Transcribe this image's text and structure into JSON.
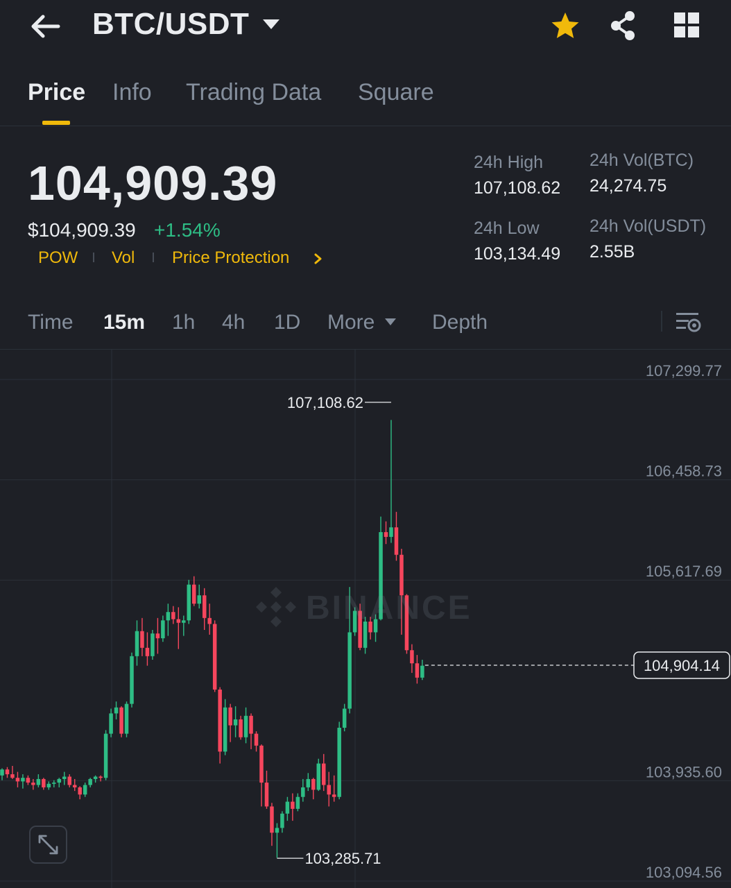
{
  "header": {
    "pair": "BTC/USDT",
    "icons": [
      "back-arrow-icon",
      "caret-down-icon",
      "star-icon",
      "share-icon",
      "grid-icon"
    ],
    "colors": {
      "star": "#f0b90b"
    }
  },
  "tabs": [
    {
      "label": "Price",
      "active": true
    },
    {
      "label": "Info",
      "active": false
    },
    {
      "label": "Trading Data",
      "active": false
    },
    {
      "label": "Square",
      "active": false
    }
  ],
  "ticker": {
    "last_price": "104,909.39",
    "usd_price": "$104,909.39",
    "change_pct": "+1.54%",
    "tags": [
      "POW",
      "Vol",
      "Price Protection"
    ],
    "stats": {
      "high_label": "24h High",
      "high_value": "107,108.62",
      "low_label": "24h Low",
      "low_value": "103,134.49",
      "vol_btc_label": "24h Vol(BTC)",
      "vol_btc_value": "24,274.75",
      "vol_usdt_label": "24h Vol(USDT)",
      "vol_usdt_value": "2.55B"
    },
    "colors": {
      "up": "#2ebd85",
      "down": "#f6465d",
      "accent": "#f0b90b"
    }
  },
  "intervals": {
    "items": [
      "Time",
      "15m",
      "1h",
      "4h",
      "1D",
      "More",
      "Depth"
    ],
    "active": "15m"
  },
  "chart_data": {
    "type": "candlestick",
    "interval": "15m",
    "y_ticks": [
      "107,299.77",
      "106,458.73",
      "105,617.69",
      "103,935.60",
      "103,094.56"
    ],
    "ylim": [
      103094.56,
      107299.77
    ],
    "high_marker": "107,108.62",
    "low_marker": "103,285.71",
    "last_price_label": "104,904.14",
    "last_price": 104904.14,
    "watermark": "BINANCE",
    "candles": [
      [
        103980,
        104040,
        103940,
        104030
      ],
      [
        104030,
        104050,
        103960,
        103990
      ],
      [
        103990,
        104060,
        103950,
        103960
      ],
      [
        103960,
        104010,
        103880,
        103930
      ],
      [
        103930,
        103990,
        103870,
        103960
      ],
      [
        103960,
        103980,
        103900,
        103920
      ],
      [
        103920,
        103950,
        103860,
        103900
      ],
      [
        103900,
        103990,
        103880,
        103950
      ],
      [
        103950,
        103960,
        103860,
        103880
      ],
      [
        103880,
        103930,
        103860,
        103910
      ],
      [
        103910,
        103940,
        103880,
        103920
      ],
      [
        103920,
        103960,
        103880,
        103950
      ],
      [
        103950,
        104010,
        103900,
        103970
      ],
      [
        103970,
        103990,
        103880,
        103900
      ],
      [
        103900,
        103950,
        103850,
        103880
      ],
      [
        103880,
        103890,
        103780,
        103820
      ],
      [
        103820,
        103920,
        103800,
        103900
      ],
      [
        103900,
        103960,
        103880,
        103950
      ],
      [
        103950,
        103980,
        103920,
        103970
      ],
      [
        103970,
        103980,
        103930,
        103960
      ],
      [
        103960,
        104360,
        103940,
        104330
      ],
      [
        104330,
        104540,
        104300,
        104500
      ],
      [
        104500,
        104600,
        104450,
        104550
      ],
      [
        104550,
        104560,
        104300,
        104330
      ],
      [
        104330,
        104600,
        104300,
        104580
      ],
      [
        104580,
        105010,
        104550,
        104980
      ],
      [
        104980,
        105280,
        104900,
        105190
      ],
      [
        105190,
        105300,
        104980,
        105050
      ],
      [
        105050,
        105180,
        104900,
        104980
      ],
      [
        104980,
        105200,
        104950,
        105170
      ],
      [
        105170,
        105300,
        105000,
        105130
      ],
      [
        105130,
        105320,
        105100,
        105280
      ],
      [
        105280,
        105420,
        105150,
        105350
      ],
      [
        105350,
        105400,
        105250,
        105290
      ],
      [
        105290,
        105390,
        105040,
        105260
      ],
      [
        105260,
        105320,
        105150,
        105280
      ],
      [
        105280,
        105620,
        105250,
        105580
      ],
      [
        105580,
        105650,
        105400,
        105420
      ],
      [
        105420,
        105580,
        105380,
        105490
      ],
      [
        105490,
        105550,
        105200,
        105300
      ],
      [
        105300,
        105420,
        105160,
        105250
      ],
      [
        105250,
        105280,
        104680,
        104700
      ],
      [
        104700,
        104720,
        104080,
        104180
      ],
      [
        104180,
        104620,
        104150,
        104550
      ],
      [
        104550,
        104580,
        104260,
        104400
      ],
      [
        104400,
        104560,
        104300,
        104450
      ],
      [
        104450,
        104480,
        104280,
        104300
      ],
      [
        104300,
        104550,
        104250,
        104480
      ],
      [
        104480,
        104500,
        104200,
        104330
      ],
      [
        104330,
        104350,
        104180,
        104230
      ],
      [
        104230,
        104240,
        103720,
        103920
      ],
      [
        103920,
        104020,
        103700,
        103720
      ],
      [
        103720,
        103750,
        103390,
        103500
      ],
      [
        103500,
        103580,
        103290,
        103540
      ],
      [
        103540,
        103680,
        103500,
        103660
      ],
      [
        103660,
        103800,
        103600,
        103760
      ],
      [
        103760,
        103830,
        103600,
        103700
      ],
      [
        103700,
        103830,
        103680,
        103800
      ],
      [
        103800,
        103950,
        103760,
        103880
      ],
      [
        103880,
        104000,
        103850,
        103950
      ],
      [
        103950,
        103960,
        103780,
        103860
      ],
      [
        103860,
        104120,
        103850,
        104080
      ],
      [
        104080,
        104160,
        103850,
        103900
      ],
      [
        103900,
        104010,
        103720,
        103820
      ],
      [
        103820,
        103980,
        103760,
        103800
      ],
      [
        103800,
        104430,
        103780,
        104380
      ],
      [
        104380,
        104580,
        104350,
        104540
      ],
      [
        104540,
        105560,
        104500,
        105180
      ],
      [
        105180,
        105390,
        105150,
        105360
      ],
      [
        105360,
        105420,
        105030,
        105050
      ],
      [
        105050,
        105310,
        105000,
        105270
      ],
      [
        105270,
        105310,
        105120,
        105180
      ],
      [
        105180,
        105330,
        105100,
        105290
      ],
      [
        105290,
        106150,
        105280,
        106020
      ],
      [
        106020,
        106110,
        105920,
        105980
      ],
      [
        105980,
        106960,
        105930,
        106060
      ],
      [
        106060,
        106190,
        105780,
        105830
      ],
      [
        105830,
        105880,
        105160,
        105490
      ],
      [
        105490,
        105500,
        105000,
        105030
      ],
      [
        105030,
        105080,
        104840,
        104920
      ],
      [
        104920,
        104990,
        104750,
        104800
      ],
      [
        104800,
        104950,
        104780,
        104900
      ]
    ]
  }
}
